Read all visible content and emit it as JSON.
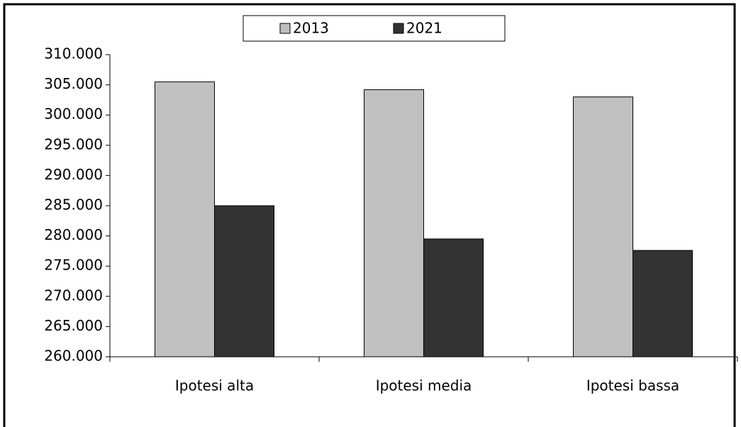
{
  "chart_data": {
    "type": "bar",
    "categories": [
      "Ipotesi alta",
      "Ipotesi media",
      "Ipotesi bassa"
    ],
    "series": [
      {
        "name": "2013",
        "color": "#c0c0c0",
        "values": [
          305500,
          304200,
          303000
        ]
      },
      {
        "name": "2021",
        "color": "#333333",
        "values": [
          285000,
          279500,
          277600
        ]
      }
    ],
    "ylim": [
      260000,
      310000
    ],
    "yticks": [
      {
        "value": 260000,
        "label": "260.000"
      },
      {
        "value": 265000,
        "label": "265.000"
      },
      {
        "value": 270000,
        "label": "270.000"
      },
      {
        "value": 275000,
        "label": "275.000"
      },
      {
        "value": 280000,
        "label": "280.000"
      },
      {
        "value": 285000,
        "label": "285.000"
      },
      {
        "value": 290000,
        "label": "290.000"
      },
      {
        "value": 295000,
        "label": "295.000"
      },
      {
        "value": 300000,
        "label": "300.000"
      },
      {
        "value": 305000,
        "label": "305.000"
      },
      {
        "value": 310000,
        "label": "310.000"
      }
    ],
    "grid": false,
    "legend": "top"
  }
}
